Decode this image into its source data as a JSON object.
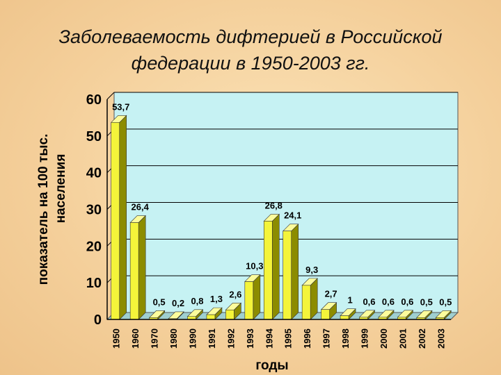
{
  "title_lines": [
    "Заболеваемость дифтерией в Российской",
    "федерации в 1950-2003 гг."
  ],
  "colors": {
    "plot_bg": "#c6f2f3",
    "bar_front": "#f4f43a",
    "bar_side": "#8c8c00",
    "bar_top": "#fcfc9c",
    "gridline": "#000000"
  },
  "chart_data": {
    "type": "bar",
    "title": "Заболеваемость дифтерией в Российской федерации в 1950-2003 гг.",
    "xlabel": "годы",
    "ylabel_lines": [
      "показатель на 100 тыс.",
      "населения"
    ],
    "ylim": [
      0,
      60
    ],
    "yticks": [
      0,
      10,
      20,
      30,
      40,
      50,
      60
    ],
    "grid": true,
    "legend": "none",
    "categories": [
      "1950",
      "1960",
      "1970",
      "1980",
      "1990",
      "1991",
      "1992",
      "1993",
      "1994",
      "1995",
      "1996",
      "1997",
      "1998",
      "1999",
      "2000",
      "2001",
      "2002",
      "2003"
    ],
    "values": [
      53.7,
      26.4,
      0.5,
      0.2,
      0.8,
      1.3,
      2.6,
      10.3,
      26.8,
      24.1,
      9.3,
      2.7,
      1,
      0.6,
      0.6,
      0.6,
      0.5,
      0.5
    ],
    "data_labels": [
      "53,7",
      "26,4",
      "0,5",
      "0,2",
      "0,8",
      "1,3",
      "2,6",
      "10,3",
      "26,8",
      "24,1",
      "9,3",
      "2,7",
      "1",
      "0,6",
      "0,6",
      "0,6",
      "0,5",
      "0,5"
    ]
  }
}
